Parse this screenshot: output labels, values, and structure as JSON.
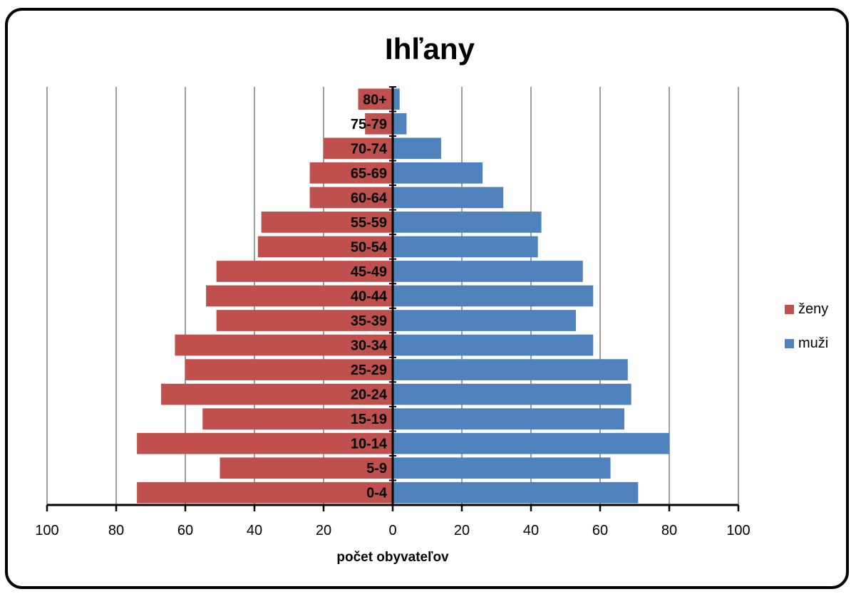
{
  "chart_data": {
    "type": "bar",
    "orientation": "horizontal",
    "layout": "population-pyramid",
    "title": "Ihľany",
    "xlabel": "počet obyvateľov",
    "ylabel": "",
    "categories": [
      "0-4",
      "5-9",
      "10-14",
      "15-19",
      "20-24",
      "25-29",
      "30-34",
      "35-39",
      "40-44",
      "45-49",
      "50-54",
      "55-59",
      "60-64",
      "65-69",
      "70-74",
      "75-79",
      "80+"
    ],
    "series": [
      {
        "name": "ženy",
        "color": "#c0504d",
        "side": "left",
        "values": [
          74,
          50,
          74,
          55,
          67,
          60,
          63,
          51,
          54,
          51,
          39,
          38,
          24,
          24,
          20,
          8,
          10
        ]
      },
      {
        "name": "muži",
        "color": "#4f81bd",
        "side": "right",
        "values": [
          71,
          63,
          80,
          67,
          69,
          68,
          58,
          53,
          58,
          55,
          42,
          43,
          32,
          26,
          14,
          4,
          2
        ]
      }
    ],
    "xlim": [
      -100,
      100
    ],
    "xticks": [
      -100,
      -80,
      -60,
      -40,
      -20,
      0,
      20,
      40,
      60,
      80,
      100
    ],
    "xtick_labels": [
      "100",
      "80",
      "60",
      "40",
      "20",
      "0",
      "20",
      "40",
      "60",
      "80",
      "100"
    ],
    "grid": "vertical",
    "legend_position": "right"
  }
}
